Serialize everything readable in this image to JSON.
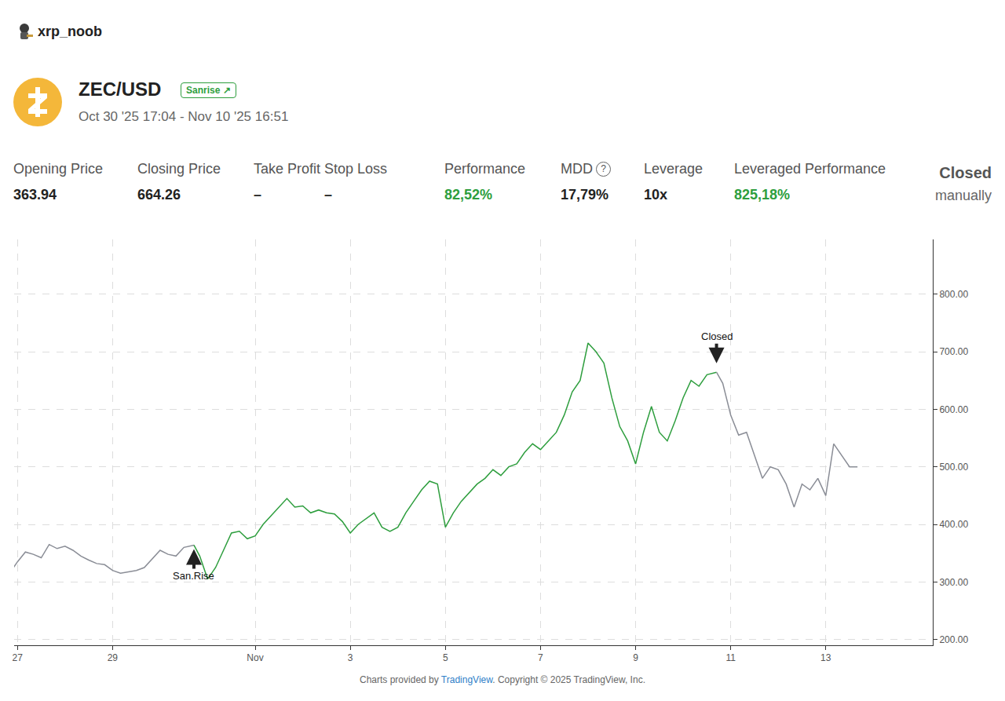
{
  "header": {
    "user": "xrp_noob",
    "pair": "ZEC/USD",
    "badge": "Sanrise ↗",
    "dates": "Oct 30 '25 17:04 - Nov 10 '25 16:51",
    "stats": [
      {
        "label": "Opening Price",
        "value": "363.94"
      },
      {
        "label": "Closing Price",
        "value": "664.26"
      },
      {
        "label": "Take Profit",
        "value": "–"
      },
      {
        "label": "Stop Loss",
        "value": "–"
      },
      {
        "label": "Performance",
        "value": "82,52%",
        "color": "green"
      },
      {
        "label": "MDD",
        "value": "17,79%",
        "help_icon": "?"
      },
      {
        "label": "Leverage",
        "value": "10x"
      },
      {
        "label": "Leveraged Performance",
        "value": "825,18%",
        "color": "green"
      }
    ],
    "status": "Closed",
    "status_detail": "manually"
  },
  "chart_data": {
    "type": "line",
    "grid": true,
    "xlim": [
      "2025-10-26 22:19",
      "2025-11-15 06:00"
    ],
    "xticks": [
      {
        "value": "2025-10-27",
        "label": "27"
      },
      {
        "value": "2025-10-29",
        "label": "29"
      },
      {
        "value": "2025-11-01",
        "label": "Nov"
      },
      {
        "value": "2025-11-03",
        "label": "3"
      },
      {
        "value": "2025-11-05",
        "label": "5"
      },
      {
        "value": "2025-11-07",
        "label": "7"
      },
      {
        "value": "2025-11-09",
        "label": "9"
      },
      {
        "value": "2025-11-11",
        "label": "11"
      },
      {
        "value": "2025-11-13",
        "label": "13"
      }
    ],
    "ylim": [
      190,
      895
    ],
    "yticks": [
      {
        "value": 200,
        "label": "200.00"
      },
      {
        "value": 300,
        "label": "300.00"
      },
      {
        "value": 400,
        "label": "400.00"
      },
      {
        "value": 500,
        "label": "500.00"
      },
      {
        "value": 600,
        "label": "600.00"
      },
      {
        "value": 700,
        "label": "700.00"
      },
      {
        "value": 800,
        "label": "800.00"
      }
    ],
    "series": [
      {
        "color": "#8a8d96",
        "x": [
          "2025-10-26 22:00",
          "2025-10-27 00:00",
          "2025-10-27 04:00",
          "2025-10-27 08:00",
          "2025-10-27 12:00",
          "2025-10-27 16:00",
          "2025-10-27 20:00",
          "2025-10-28 00:00",
          "2025-10-28 04:00",
          "2025-10-28 08:00",
          "2025-10-28 12:00",
          "2025-10-28 16:00",
          "2025-10-28 20:00",
          "2025-10-29 00:00",
          "2025-10-29 04:00",
          "2025-10-29 08:00",
          "2025-10-29 12:00",
          "2025-10-29 16:00",
          "2025-10-29 20:00",
          "2025-10-30 00:00",
          "2025-10-30 04:00",
          "2025-10-30 08:00",
          "2025-10-30 12:00",
          "2025-10-30 17:04"
        ],
        "values": [
          325,
          335,
          352,
          348,
          342,
          365,
          358,
          362,
          355,
          345,
          338,
          332,
          330,
          320,
          315,
          318,
          320,
          325,
          340,
          355,
          348,
          345,
          360,
          363.94
        ]
      },
      {
        "color": "#2e9e3e",
        "x": [
          "2025-10-30 17:04",
          "2025-10-30 20:00",
          "2025-10-31 00:00",
          "2025-10-31 04:00",
          "2025-10-31 08:00",
          "2025-10-31 12:00",
          "2025-10-31 16:00",
          "2025-10-31 20:00",
          "2025-11-01 00:00",
          "2025-11-01 04:00",
          "2025-11-01 08:00",
          "2025-11-01 12:00",
          "2025-11-01 16:00",
          "2025-11-01 20:00",
          "2025-11-02 00:00",
          "2025-11-02 04:00",
          "2025-11-02 08:00",
          "2025-11-02 12:00",
          "2025-11-02 16:00",
          "2025-11-02 20:00",
          "2025-11-03 00:00",
          "2025-11-03 04:00",
          "2025-11-03 08:00",
          "2025-11-03 12:00",
          "2025-11-03 16:00",
          "2025-11-03 20:00",
          "2025-11-04 00:00",
          "2025-11-04 04:00",
          "2025-11-04 08:00",
          "2025-11-04 12:00",
          "2025-11-04 16:00",
          "2025-11-04 20:00",
          "2025-11-05 00:00",
          "2025-11-05 04:00",
          "2025-11-05 08:00",
          "2025-11-05 12:00",
          "2025-11-05 16:00",
          "2025-11-05 20:00",
          "2025-11-06 00:00",
          "2025-11-06 04:00",
          "2025-11-06 08:00",
          "2025-11-06 12:00",
          "2025-11-06 16:00",
          "2025-11-06 20:00",
          "2025-11-07 00:00",
          "2025-11-07 04:00",
          "2025-11-07 08:00",
          "2025-11-07 12:00",
          "2025-11-07 16:00",
          "2025-11-07 20:00",
          "2025-11-08 00:00",
          "2025-11-08 04:00",
          "2025-11-08 08:00",
          "2025-11-08 12:00",
          "2025-11-08 16:00",
          "2025-11-08 20:00",
          "2025-11-09 00:00",
          "2025-11-09 04:00",
          "2025-11-09 08:00",
          "2025-11-09 12:00",
          "2025-11-09 16:00",
          "2025-11-09 20:00",
          "2025-11-10 00:00",
          "2025-11-10 04:00",
          "2025-11-10 08:00",
          "2025-11-10 12:00",
          "2025-11-10 16:51"
        ],
        "values": [
          363.94,
          345,
          305,
          325,
          355,
          385,
          388,
          375,
          380,
          400,
          415,
          430,
          445,
          430,
          432,
          420,
          425,
          420,
          418,
          405,
          385,
          400,
          410,
          420,
          395,
          388,
          395,
          420,
          440,
          460,
          475,
          470,
          395,
          420,
          440,
          455,
          470,
          480,
          495,
          485,
          500,
          505,
          525,
          540,
          530,
          545,
          560,
          590,
          630,
          650,
          715,
          700,
          680,
          620,
          570,
          545,
          505,
          560,
          605,
          560,
          545,
          580,
          620,
          650,
          640,
          660,
          664.26
        ]
      },
      {
        "color": "#8a8d96",
        "x": [
          "2025-11-10 16:51",
          "2025-11-10 20:00",
          "2025-11-11 00:00",
          "2025-11-11 04:00",
          "2025-11-11 08:00",
          "2025-11-11 12:00",
          "2025-11-11 16:00",
          "2025-11-11 20:00",
          "2025-11-12 00:00",
          "2025-11-12 04:00",
          "2025-11-12 08:00",
          "2025-11-12 12:00",
          "2025-11-12 16:00",
          "2025-11-12 20:00",
          "2025-11-13 00:00",
          "2025-11-13 04:00",
          "2025-11-13 08:00",
          "2025-11-13 12:00",
          "2025-11-13 16:00"
        ],
        "values": [
          664.26,
          645,
          590,
          555,
          560,
          520,
          480,
          500,
          495,
          470,
          430,
          470,
          460,
          480,
          450,
          540,
          520,
          500,
          500
        ]
      }
    ],
    "annotations": [
      {
        "text": "San.Rise",
        "x": "2025-10-30 17:04",
        "y": 357,
        "position": "below"
      },
      {
        "text": "Closed",
        "x": "2025-11-10 16:51",
        "y": 680,
        "position": "above"
      }
    ],
    "footer": {
      "before": "Charts provided by ",
      "link": "TradingView",
      "after": ". Copyright © 2025 TradingView, Inc."
    }
  }
}
